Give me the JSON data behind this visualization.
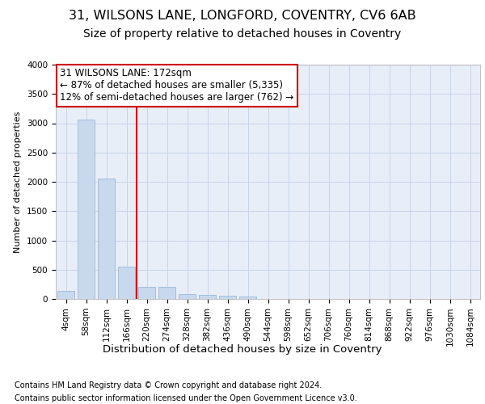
{
  "title1": "31, WILSONS LANE, LONGFORD, COVENTRY, CV6 6AB",
  "title2": "Size of property relative to detached houses in Coventry",
  "xlabel": "Distribution of detached houses by size in Coventry",
  "ylabel": "Number of detached properties",
  "categories": [
    "4sqm",
    "58sqm",
    "112sqm",
    "166sqm",
    "220sqm",
    "274sqm",
    "328sqm",
    "382sqm",
    "436sqm",
    "490sqm",
    "544sqm",
    "598sqm",
    "652sqm",
    "706sqm",
    "760sqm",
    "814sqm",
    "868sqm",
    "922sqm",
    "976sqm",
    "1030sqm",
    "1084sqm"
  ],
  "values": [
    140,
    3060,
    2060,
    550,
    210,
    205,
    80,
    70,
    50,
    40,
    0,
    0,
    0,
    0,
    0,
    0,
    0,
    0,
    0,
    0,
    0
  ],
  "bar_color": "#c8d9ed",
  "bar_edge_color": "#9ab8d8",
  "vline_x": 3.5,
  "vline_color": "#cc0000",
  "annotation_line1": "31 WILSONS LANE: 172sqm",
  "annotation_line2": "← 87% of detached houses are smaller (5,335)",
  "annotation_line3": "12% of semi-detached houses are larger (762) →",
  "annotation_box_color": "#ffffff",
  "annotation_box_edge_color": "#cc0000",
  "ylim": [
    0,
    4000
  ],
  "yticks": [
    0,
    500,
    1000,
    1500,
    2000,
    2500,
    3000,
    3500,
    4000
  ],
  "footer1": "Contains HM Land Registry data © Crown copyright and database right 2024.",
  "footer2": "Contains public sector information licensed under the Open Government Licence v3.0.",
  "bg_color": "#ffffff",
  "plot_bg_color": "#e8eef8",
  "grid_color": "#c8d4e8",
  "title1_fontsize": 11.5,
  "title2_fontsize": 10,
  "ylabel_fontsize": 8,
  "xlabel_fontsize": 9.5,
  "tick_fontsize": 7.5,
  "footer_fontsize": 7,
  "ann_fontsize": 8.5
}
